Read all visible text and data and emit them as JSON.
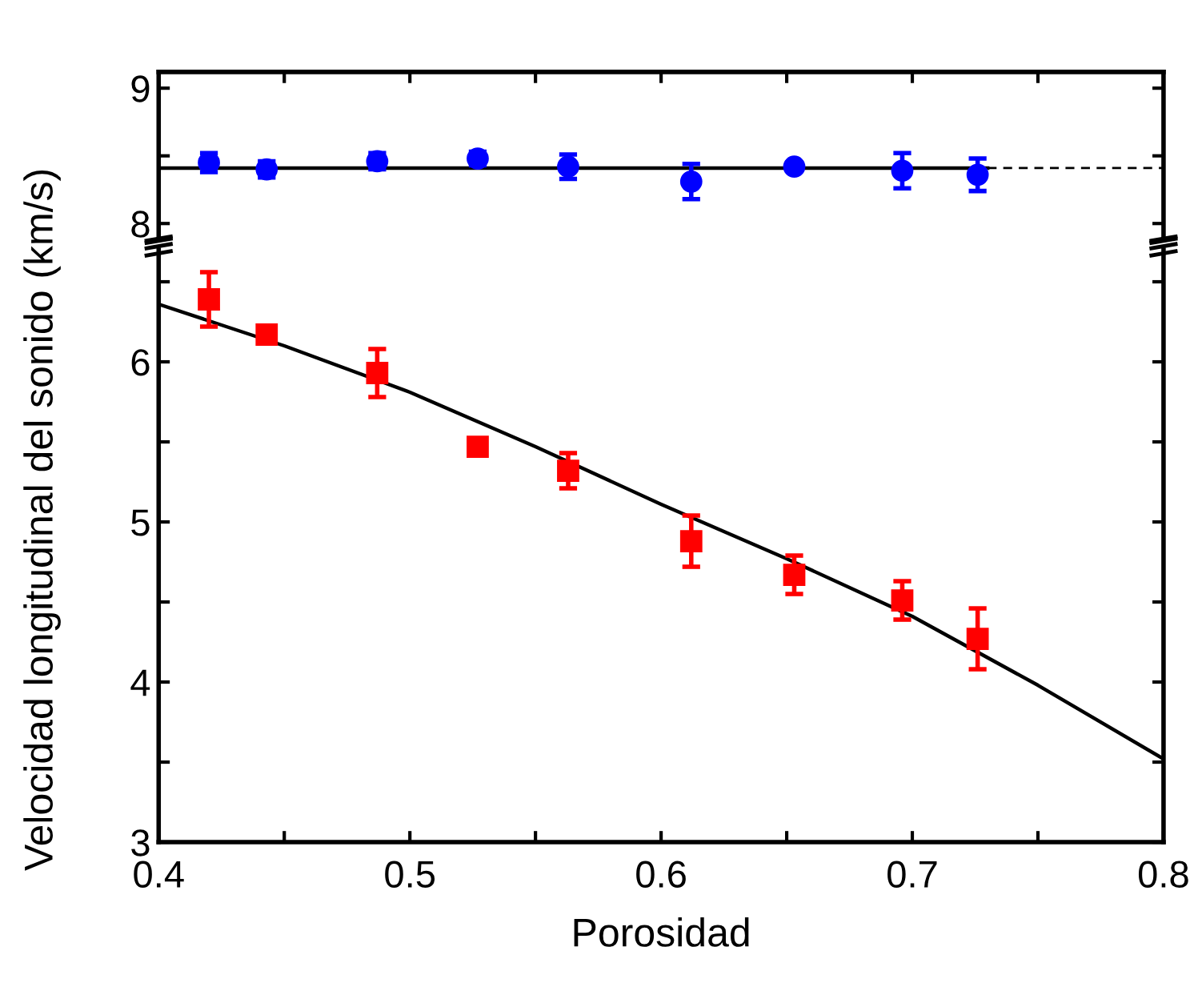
{
  "chart_data": [
    {
      "type": "scatter",
      "ylabel": "Velocidad longitudinal del sonido (km/s)",
      "xlim": [
        0.4,
        0.8
      ],
      "ylim": [
        7.88,
        9.12
      ],
      "tick_labels": "y",
      "xticks": [
        {
          "value": 0.4,
          "label": null
        },
        {
          "value": 0.45,
          "label": null
        },
        {
          "value": 0.5,
          "label": null
        },
        {
          "value": 0.55,
          "label": null
        },
        {
          "value": 0.6,
          "label": null
        },
        {
          "value": 0.65,
          "label": null
        },
        {
          "value": 0.7,
          "label": null
        },
        {
          "value": 0.75,
          "label": null
        },
        {
          "value": 0.8,
          "label": null
        }
      ],
      "yticks": [
        8,
        {
          "value": 8.5,
          "label": null
        },
        9
      ],
      "series": [
        {
          "marker": "circle",
          "color": "#0000ff",
          "x": [
            0.42,
            0.443,
            0.487,
            0.527,
            0.563,
            0.612,
            0.653,
            0.696,
            0.726
          ],
          "values": [
            8.45,
            8.4,
            8.46,
            8.48,
            8.42,
            8.31,
            8.42,
            8.39,
            8.36
          ],
          "errors": [
            0.07,
            0.06,
            0.06,
            0.05,
            0.09,
            0.13,
            0.03,
            0.13,
            0.12
          ]
        },
        {
          "type": "line",
          "line_style": "solid",
          "color": "#000000",
          "x": [
            0.4,
            0.73
          ],
          "values": [
            8.41,
            8.41
          ]
        },
        {
          "type": "line",
          "line_style": "dashed",
          "color": "#000000",
          "x": [
            0.73,
            0.8
          ],
          "values": [
            8.41,
            8.41
          ]
        }
      ]
    },
    {
      "type": "scatter",
      "xlabel": "Porosidad",
      "xlim": [
        0.4,
        0.8
      ],
      "ylim": [
        3,
        6.7
      ],
      "xticks": [
        0.4,
        {
          "value": 0.45,
          "label": null
        },
        0.5,
        {
          "value": 0.55,
          "label": null
        },
        0.6,
        {
          "value": 0.65,
          "label": null
        },
        0.7,
        {
          "value": 0.75,
          "label": null
        },
        0.8
      ],
      "yticks": [
        3,
        {
          "value": 3.5,
          "label": null
        },
        4,
        {
          "value": 4.5,
          "label": null
        },
        5,
        {
          "value": 5.5,
          "label": null
        },
        6,
        {
          "value": 6.5,
          "label": null
        }
      ],
      "series": [
        {
          "marker": "square",
          "color": "#ff0000",
          "x": [
            0.42,
            0.443,
            0.487,
            0.527,
            0.563,
            0.612,
            0.653,
            0.696,
            0.726
          ],
          "values": [
            6.39,
            6.17,
            5.93,
            5.47,
            5.32,
            4.88,
            4.67,
            4.51,
            4.27
          ],
          "errors": [
            0.17,
            0.05,
            0.15,
            0.05,
            0.11,
            0.16,
            0.12,
            0.12,
            0.19
          ]
        },
        {
          "type": "line",
          "line_style": "solid",
          "color": "#000000",
          "x": [
            0.4,
            0.45,
            0.5,
            0.55,
            0.6,
            0.65,
            0.7,
            0.75,
            0.8
          ],
          "values": [
            6.36,
            6.1,
            5.81,
            5.47,
            5.11,
            4.77,
            4.41,
            3.98,
            3.52
          ]
        }
      ]
    }
  ]
}
